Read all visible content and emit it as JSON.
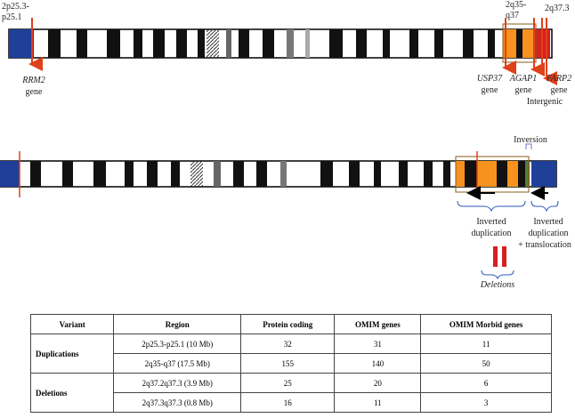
{
  "figure": {
    "top": {
      "left_region": [
        "2p25.3-",
        "p25.1"
      ],
      "right_region": [
        "2q35-",
        "q37"
      ],
      "terminal_band": "2q37.3",
      "genes": [
        {
          "name": "RRM2",
          "label": "gene"
        },
        {
          "name": "USP37",
          "label": "gene"
        },
        {
          "name": "AGAP1",
          "label": "gene"
        },
        {
          "name": "FARP2",
          "label": "gene"
        }
      ],
      "intergenic": "Intergenic"
    },
    "bottom": {
      "inversion": "Inversion",
      "inverted_duplication": [
        "Inverted",
        "duplication"
      ],
      "translocation": [
        "Inverted",
        "duplication",
        "+ translocation"
      ],
      "deletions": "Deletions"
    }
  },
  "table": {
    "header": [
      "Variant",
      "Region",
      "Protein coding",
      "OMIM genes",
      "OMIM Morbid genes"
    ],
    "groups": [
      {
        "variant": "Duplications",
        "rows": [
          [
            "2p25.3-p25.1 (10 Mb)",
            32,
            31,
            11
          ],
          [
            "2q35-q37 (17.5 Mb)",
            155,
            140,
            50
          ]
        ]
      },
      {
        "variant": "Deletions",
        "rows": [
          [
            "2q37.2q37.3 (3.9 Mb)",
            25,
            20,
            6
          ],
          [
            "2q37.3q37.3 (0.8 Mb)",
            16,
            11,
            3
          ]
        ]
      }
    ]
  }
}
